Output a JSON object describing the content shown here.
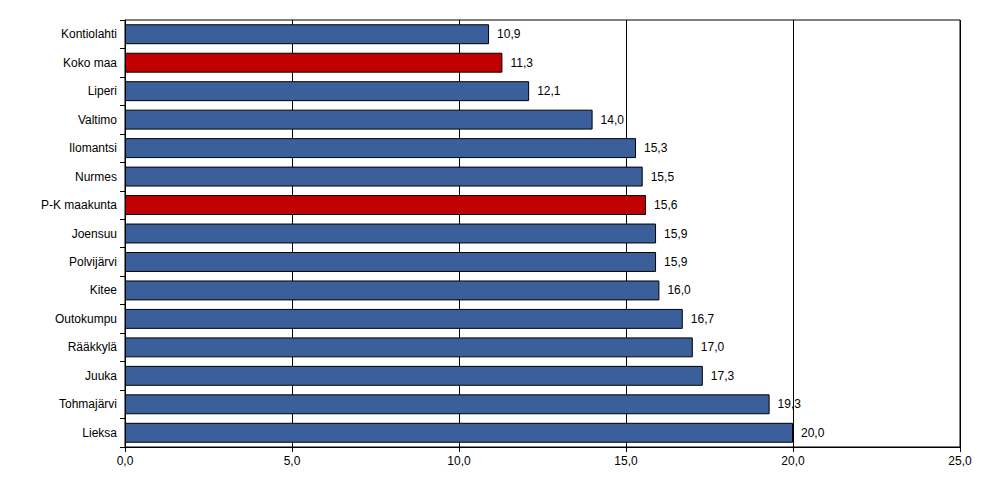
{
  "chart_data": {
    "type": "bar",
    "orientation": "horizontal",
    "categories": [
      "Kontiolahti",
      "Koko maa",
      "Liperi",
      "Valtimo",
      "Ilomantsi",
      "Nurmes",
      "P-K maakunta",
      "Joensuu",
      "Polvijärvi",
      "Kitee",
      "Outokumpu",
      "Rääkkylä",
      "Juuka",
      "Tohmajärvi",
      "Lieksa"
    ],
    "values": [
      10.9,
      11.3,
      12.1,
      14.0,
      15.3,
      15.5,
      15.6,
      15.9,
      15.9,
      16.0,
      16.7,
      17.0,
      17.3,
      19.3,
      20.0
    ],
    "value_labels": [
      "10,9",
      "11,3",
      "12,1",
      "14,0",
      "15,3",
      "15,5",
      "15,6",
      "15,9",
      "15,9",
      "16,0",
      "16,7",
      "17,0",
      "17,3",
      "19,3",
      "20,0"
    ],
    "colors": [
      "#3a5f9a",
      "#c00000",
      "#3a5f9a",
      "#3a5f9a",
      "#3a5f9a",
      "#3a5f9a",
      "#c00000",
      "#3a5f9a",
      "#3a5f9a",
      "#3a5f9a",
      "#3a5f9a",
      "#3a5f9a",
      "#3a5f9a",
      "#3a5f9a",
      "#3a5f9a"
    ],
    "xlim": [
      0,
      25
    ],
    "xticks": [
      {
        "value": 0,
        "label": "0,0"
      },
      {
        "value": 5,
        "label": "5,0"
      },
      {
        "value": 10,
        "label": "10,0"
      },
      {
        "value": 15,
        "label": "15,0"
      },
      {
        "value": 20,
        "label": "20,0"
      },
      {
        "value": 25,
        "label": "25,0"
      }
    ],
    "grid": true,
    "data_labels": true
  }
}
